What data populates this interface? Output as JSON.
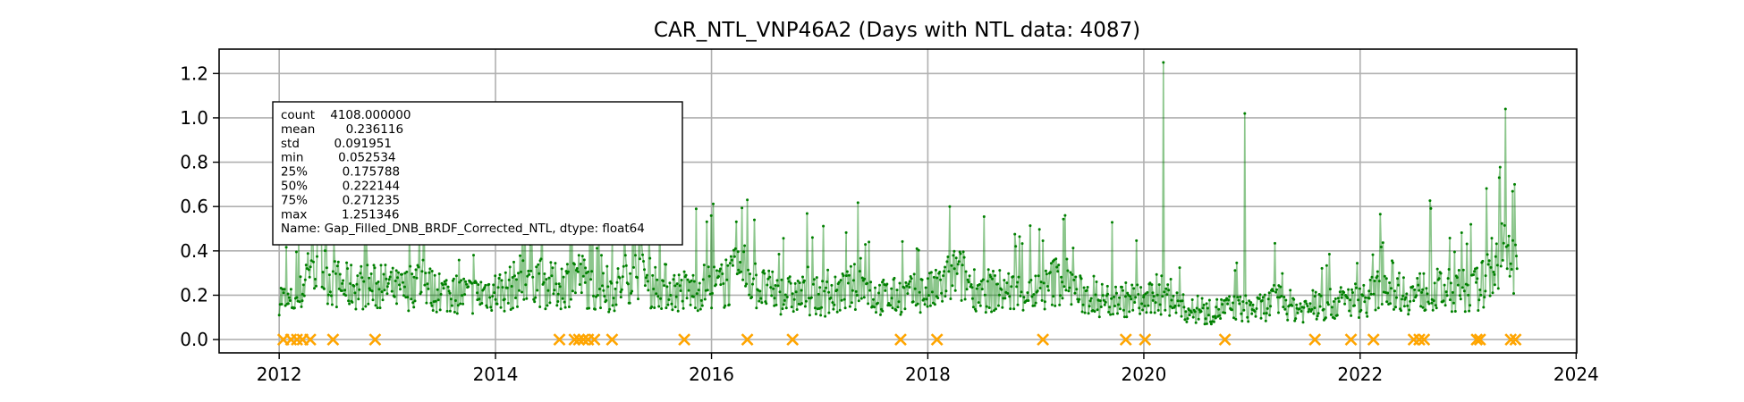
{
  "chart_data": {
    "type": "line",
    "title": "CAR_NTL_VNP46A2 (Days with NTL data: 4087)",
    "xlabel": "",
    "ylabel": "",
    "x_range": [
      "2011-06-12",
      "2024-01-03"
    ],
    "ylim": [
      -0.06,
      1.31
    ],
    "x_ticks": [
      "2012",
      "2014",
      "2016",
      "2018",
      "2020",
      "2022",
      "2024"
    ],
    "y_ticks": [
      "0.0",
      "0.2",
      "0.4",
      "0.6",
      "0.8",
      "1.0",
      "1.2"
    ],
    "grid": true,
    "colors": {
      "series": "#008000",
      "markers": "#FFA500",
      "grid": "#b0b0b0"
    },
    "series": [
      {
        "mark": "line",
        "approx_points": [
          [
            "2012-01-01",
            0.2
          ],
          [
            "2012-02-01",
            0.16
          ],
          [
            "2012-03-01",
            0.18
          ],
          [
            "2012-03-20",
            0.22
          ],
          [
            "2012-04-01",
            0.3
          ],
          [
            "2012-04-20",
            0.4
          ],
          [
            "2012-05-10",
            0.34
          ],
          [
            "2012-06-01",
            0.3
          ],
          [
            "2012-07-01",
            0.26
          ],
          [
            "2012-08-01",
            0.24
          ],
          [
            "2012-09-01",
            0.24
          ],
          [
            "2012-10-01",
            0.24
          ],
          [
            "2012-11-01",
            0.24
          ],
          [
            "2012-12-01",
            0.23
          ],
          [
            "2013-01-01",
            0.24
          ],
          [
            "2013-02-01",
            0.22
          ],
          [
            "2013-03-01",
            0.22
          ],
          [
            "2013-04-01",
            0.26
          ],
          [
            "2013-05-01",
            0.28
          ],
          [
            "2013-06-01",
            0.22
          ],
          [
            "2013-07-01",
            0.21
          ],
          [
            "2013-08-01",
            0.21
          ],
          [
            "2013-09-01",
            0.21
          ],
          [
            "2013-10-01",
            0.2
          ],
          [
            "2013-11-01",
            0.2
          ],
          [
            "2013-12-01",
            0.22
          ],
          [
            "2014-01-01",
            0.22
          ],
          [
            "2014-02-01",
            0.22
          ],
          [
            "2014-03-01",
            0.24
          ],
          [
            "2014-04-01",
            0.28
          ],
          [
            "2014-05-01",
            0.32
          ],
          [
            "2014-06-01",
            0.26
          ],
          [
            "2014-07-01",
            0.24
          ],
          [
            "2014-08-01",
            0.24
          ],
          [
            "2014-09-01",
            0.26
          ],
          [
            "2014-10-01",
            0.3
          ],
          [
            "2014-11-01",
            0.26
          ],
          [
            "2014-12-01",
            0.22
          ],
          [
            "2015-01-01",
            0.21
          ],
          [
            "2015-02-01",
            0.22
          ],
          [
            "2015-03-01",
            0.24
          ],
          [
            "2015-04-01",
            0.3
          ],
          [
            "2015-05-01",
            0.32
          ],
          [
            "2015-06-01",
            0.26
          ],
          [
            "2015-07-01",
            0.24
          ],
          [
            "2015-08-01",
            0.24
          ],
          [
            "2015-09-01",
            0.22
          ],
          [
            "2015-10-01",
            0.22
          ],
          [
            "2015-11-01",
            0.22
          ],
          [
            "2015-12-01",
            0.24
          ],
          [
            "2016-01-01",
            0.24
          ],
          [
            "2016-02-01",
            0.24
          ],
          [
            "2016-03-01",
            0.26
          ],
          [
            "2016-04-01",
            0.3
          ],
          [
            "2016-05-01",
            0.32
          ],
          [
            "2016-06-01",
            0.24
          ],
          [
            "2016-07-01",
            0.22
          ],
          [
            "2016-08-01",
            0.21
          ],
          [
            "2016-09-01",
            0.2
          ],
          [
            "2016-10-01",
            0.2
          ],
          [
            "2016-11-01",
            0.2
          ],
          [
            "2016-12-01",
            0.2
          ],
          [
            "2017-01-01",
            0.19
          ],
          [
            "2017-02-01",
            0.19
          ],
          [
            "2017-03-01",
            0.2
          ],
          [
            "2017-04-01",
            0.22
          ],
          [
            "2017-05-01",
            0.24
          ],
          [
            "2017-06-01",
            0.24
          ],
          [
            "2017-07-01",
            0.2
          ],
          [
            "2017-08-01",
            0.19
          ],
          [
            "2017-09-01",
            0.19
          ],
          [
            "2017-10-01",
            0.2
          ],
          [
            "2017-11-01",
            0.2
          ],
          [
            "2017-12-01",
            0.21
          ],
          [
            "2018-01-01",
            0.21
          ],
          [
            "2018-02-01",
            0.22
          ],
          [
            "2018-03-01",
            0.26
          ],
          [
            "2018-04-01",
            0.3
          ],
          [
            "2018-05-01",
            0.28
          ],
          [
            "2018-06-01",
            0.24
          ],
          [
            "2018-07-01",
            0.22
          ],
          [
            "2018-08-01",
            0.22
          ],
          [
            "2018-09-01",
            0.22
          ],
          [
            "2018-10-01",
            0.22
          ],
          [
            "2018-11-01",
            0.21
          ],
          [
            "2018-12-01",
            0.22
          ],
          [
            "2019-01-01",
            0.21
          ],
          [
            "2019-02-01",
            0.22
          ],
          [
            "2019-03-01",
            0.26
          ],
          [
            "2019-04-01",
            0.28
          ],
          [
            "2019-05-01",
            0.24
          ],
          [
            "2019-06-01",
            0.2
          ],
          [
            "2019-07-01",
            0.19
          ],
          [
            "2019-08-01",
            0.18
          ],
          [
            "2019-09-01",
            0.18
          ],
          [
            "2019-10-01",
            0.18
          ],
          [
            "2019-11-01",
            0.18
          ],
          [
            "2019-12-01",
            0.18
          ],
          [
            "2020-01-01",
            0.17
          ],
          [
            "2020-02-01",
            0.18
          ],
          [
            "2020-03-01",
            0.2
          ],
          [
            "2020-04-01",
            0.18
          ],
          [
            "2020-05-01",
            0.15
          ],
          [
            "2020-06-01",
            0.13
          ],
          [
            "2020-07-01",
            0.12
          ],
          [
            "2020-08-01",
            0.12
          ],
          [
            "2020-09-01",
            0.13
          ],
          [
            "2020-10-01",
            0.14
          ],
          [
            "2020-11-01",
            0.14
          ],
          [
            "2020-12-01",
            0.14
          ],
          [
            "2021-01-01",
            0.14
          ],
          [
            "2021-02-01",
            0.14
          ],
          [
            "2021-03-01",
            0.16
          ],
          [
            "2021-04-01",
            0.18
          ],
          [
            "2021-05-01",
            0.16
          ],
          [
            "2021-06-01",
            0.14
          ],
          [
            "2021-07-01",
            0.14
          ],
          [
            "2021-08-01",
            0.15
          ],
          [
            "2021-09-01",
            0.15
          ],
          [
            "2021-10-01",
            0.16
          ],
          [
            "2021-11-01",
            0.17
          ],
          [
            "2021-12-01",
            0.18
          ],
          [
            "2022-01-01",
            0.18
          ],
          [
            "2022-02-01",
            0.19
          ],
          [
            "2022-03-01",
            0.22
          ],
          [
            "2022-04-01",
            0.26
          ],
          [
            "2022-05-01",
            0.24
          ],
          [
            "2022-06-01",
            0.21
          ],
          [
            "2022-07-01",
            0.2
          ],
          [
            "2022-08-01",
            0.22
          ],
          [
            "2022-09-01",
            0.22
          ],
          [
            "2022-10-01",
            0.22
          ],
          [
            "2022-11-01",
            0.22
          ],
          [
            "2022-12-01",
            0.22
          ],
          [
            "2023-01-01",
            0.22
          ],
          [
            "2023-02-01",
            0.23
          ],
          [
            "2023-03-01",
            0.26
          ],
          [
            "2023-04-01",
            0.34
          ],
          [
            "2023-05-01",
            0.38
          ],
          [
            "2023-06-01",
            0.34
          ],
          [
            "2023-06-15",
            0.32
          ]
        ],
        "spikes": [
          [
            "2012-05-10",
            0.62
          ],
          [
            "2013-03-15",
            0.5
          ],
          [
            "2014-04-10",
            0.62
          ],
          [
            "2014-09-15",
            0.6
          ],
          [
            "2015-04-15",
            0.89
          ],
          [
            "2016-05-01",
            0.63
          ],
          [
            "2017-06-15",
            0.44
          ],
          [
            "2018-03-15",
            0.6
          ],
          [
            "2019-04-10",
            0.56
          ],
          [
            "2020-03-05",
            1.25
          ],
          [
            "2020-12-05",
            1.02
          ],
          [
            "2023-01-10",
            0.52
          ],
          [
            "2023-04-15",
            0.73
          ],
          [
            "2023-05-05",
            1.04
          ],
          [
            "2023-06-05",
            0.7
          ]
        ]
      },
      {
        "mark": "x-marker",
        "y_value": 0.0,
        "x": [
          "2012-01-15",
          "2012-02-10",
          "2012-03-01",
          "2012-03-20",
          "2012-04-15",
          "2012-07-01",
          "2012-11-20",
          "2014-08-05",
          "2014-09-25",
          "2014-10-10",
          "2014-10-25",
          "2014-11-10",
          "2014-12-01",
          "2015-01-30",
          "2015-10-01",
          "2016-05-01",
          "2016-10-01",
          "2017-10-01",
          "2018-02-01",
          "2019-01-25",
          "2019-11-01",
          "2020-01-05",
          "2020-10-01",
          "2021-08-01",
          "2021-12-01",
          "2022-02-15",
          "2022-07-01",
          "2022-07-20",
          "2022-08-05",
          "2023-01-30",
          "2023-02-10",
          "2023-05-25",
          "2023-06-10"
        ]
      }
    ],
    "stats_box": {
      "lines": [
        "count    4108.000000",
        "mean        0.236116",
        "std         0.091951",
        "min         0.052534",
        "25%         0.175788",
        "50%         0.222144",
        "75%         0.271235",
        "max         1.251346",
        "Name: Gap_Filled_DNB_BRDF_Corrected_NTL, dtype: float64"
      ]
    }
  }
}
